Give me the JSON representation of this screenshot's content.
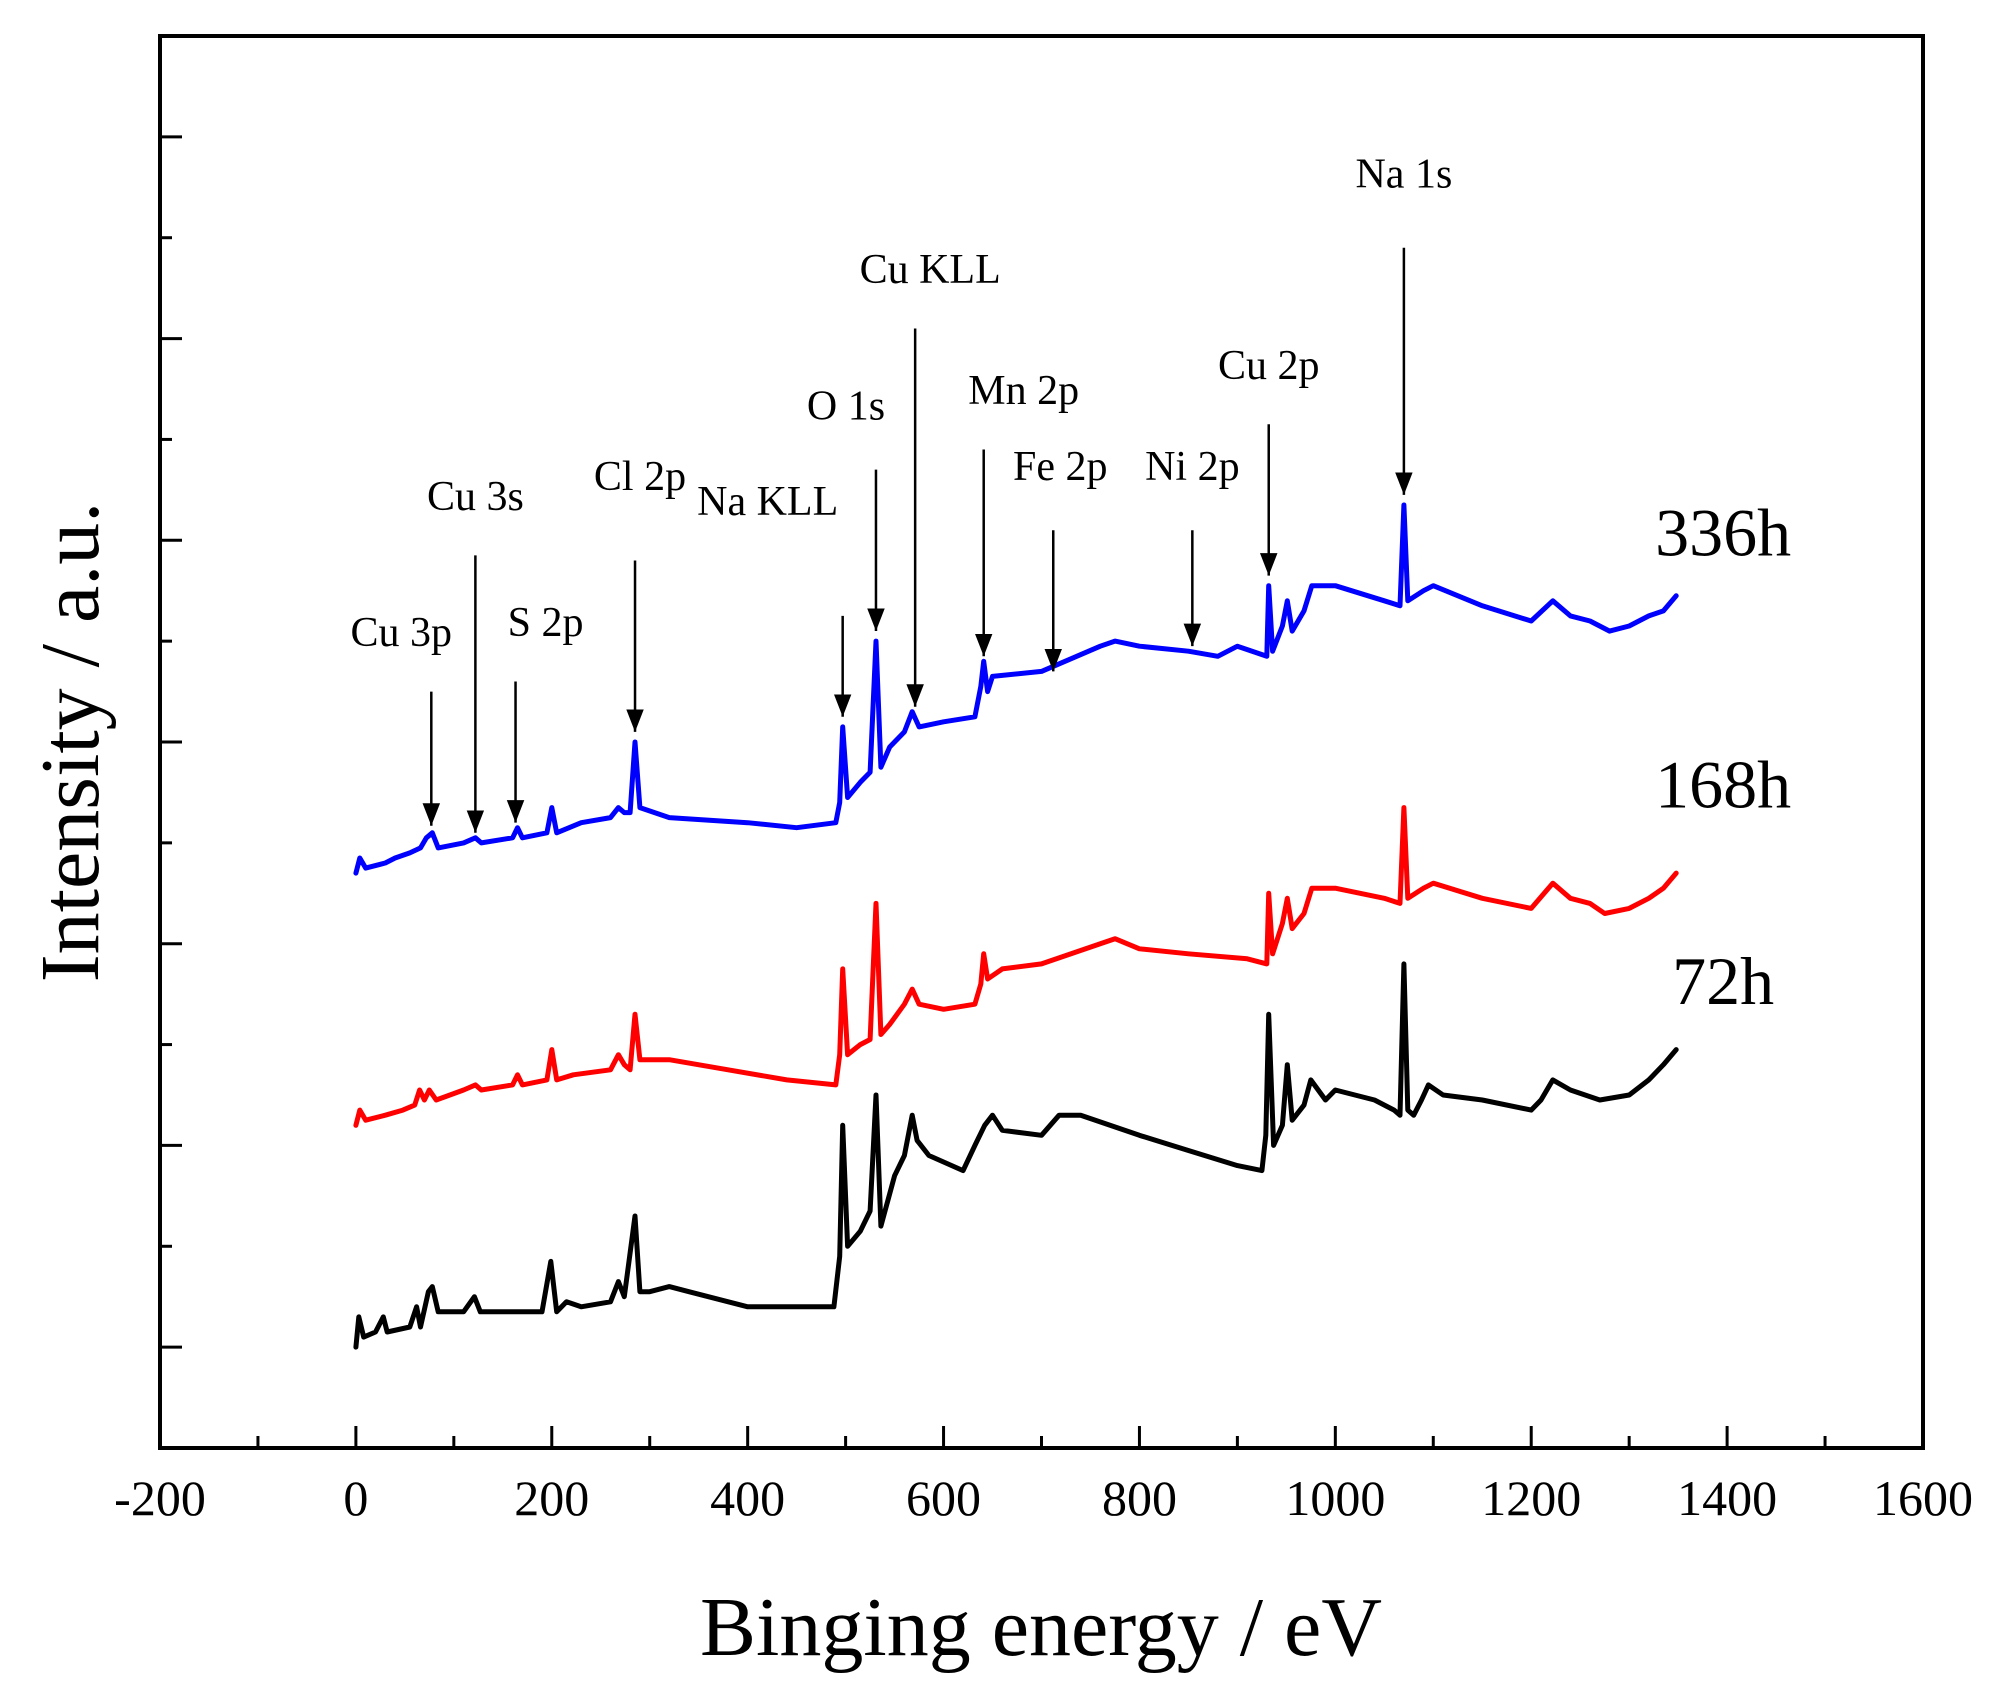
{
  "chart_data": {
    "type": "line",
    "title": "",
    "xlabel": "Binging energy / eV",
    "ylabel": "Intensity / a.u.",
    "xlim": [
      -200,
      1600
    ],
    "x_ticks": [
      -200,
      0,
      200,
      400,
      600,
      800,
      1000,
      1200,
      1400,
      1600
    ],
    "x_tick_labels": [
      "-200",
      "0",
      "200",
      "400",
      "600",
      "800",
      "1000",
      "1200",
      "1400",
      "1600"
    ],
    "ylim": [
      0,
      14
    ],
    "y_ticks": [
      1,
      2,
      3,
      4,
      5,
      6,
      7,
      8,
      9,
      10,
      11,
      12,
      13
    ],
    "y_tick_labels_shown": false,
    "grid": false,
    "legend": "none (series labelled at right end of each curve)",
    "series": [
      {
        "name": "72h",
        "color": "#000000",
        "points": [
          [
            0,
            1.0
          ],
          [
            3,
            1.3
          ],
          [
            8,
            1.1
          ],
          [
            20,
            1.15
          ],
          [
            28,
            1.3
          ],
          [
            32,
            1.15
          ],
          [
            55,
            1.2
          ],
          [
            62,
            1.4
          ],
          [
            66,
            1.2
          ],
          [
            74,
            1.55
          ],
          [
            78,
            1.6
          ],
          [
            84,
            1.35
          ],
          [
            110,
            1.35
          ],
          [
            121,
            1.5
          ],
          [
            127,
            1.35
          ],
          [
            190,
            1.35
          ],
          [
            199,
            1.85
          ],
          [
            205,
            1.35
          ],
          [
            215,
            1.45
          ],
          [
            230,
            1.4
          ],
          [
            260,
            1.45
          ],
          [
            268,
            1.65
          ],
          [
            274,
            1.5
          ],
          [
            285,
            2.3
          ],
          [
            290,
            1.55
          ],
          [
            300,
            1.55
          ],
          [
            320,
            1.6
          ],
          [
            340,
            1.55
          ],
          [
            400,
            1.4
          ],
          [
            470,
            1.4
          ],
          [
            488,
            1.4
          ],
          [
            494,
            1.9
          ],
          [
            497,
            3.2
          ],
          [
            502,
            2.0
          ],
          [
            515,
            2.15
          ],
          [
            525,
            2.35
          ],
          [
            531,
            3.5
          ],
          [
            536,
            2.2
          ],
          [
            550,
            2.7
          ],
          [
            560,
            2.9
          ],
          [
            568,
            3.3
          ],
          [
            573,
            3.05
          ],
          [
            585,
            2.9
          ],
          [
            620,
            2.75
          ],
          [
            632,
            3.0
          ],
          [
            642,
            3.2
          ],
          [
            650,
            3.3
          ],
          [
            660,
            3.15
          ],
          [
            700,
            3.1
          ],
          [
            718,
            3.3
          ],
          [
            740,
            3.3
          ],
          [
            800,
            3.1
          ],
          [
            850,
            2.95
          ],
          [
            900,
            2.8
          ],
          [
            925,
            2.75
          ],
          [
            929,
            3.1
          ],
          [
            932,
            4.3
          ],
          [
            937,
            3.0
          ],
          [
            946,
            3.2
          ],
          [
            951,
            3.8
          ],
          [
            956,
            3.25
          ],
          [
            968,
            3.4
          ],
          [
            975,
            3.65
          ],
          [
            990,
            3.45
          ],
          [
            1000,
            3.55
          ],
          [
            1040,
            3.45
          ],
          [
            1060,
            3.35
          ],
          [
            1066,
            3.3
          ],
          [
            1070,
            4.8
          ],
          [
            1074,
            3.35
          ],
          [
            1080,
            3.3
          ],
          [
            1088,
            3.45
          ],
          [
            1095,
            3.6
          ],
          [
            1110,
            3.5
          ],
          [
            1150,
            3.45
          ],
          [
            1200,
            3.35
          ],
          [
            1210,
            3.45
          ],
          [
            1222,
            3.65
          ],
          [
            1240,
            3.55
          ],
          [
            1270,
            3.45
          ],
          [
            1300,
            3.5
          ],
          [
            1320,
            3.65
          ],
          [
            1335,
            3.8
          ],
          [
            1348,
            3.95
          ]
        ]
      },
      {
        "name": "168h",
        "color": "#ff0000",
        "points": [
          [
            0,
            3.2
          ],
          [
            4,
            3.35
          ],
          [
            10,
            3.25
          ],
          [
            30,
            3.3
          ],
          [
            48,
            3.35
          ],
          [
            60,
            3.4
          ],
          [
            65,
            3.55
          ],
          [
            70,
            3.45
          ],
          [
            75,
            3.55
          ],
          [
            82,
            3.45
          ],
          [
            110,
            3.55
          ],
          [
            122,
            3.6
          ],
          [
            128,
            3.55
          ],
          [
            160,
            3.6
          ],
          [
            165,
            3.7
          ],
          [
            170,
            3.6
          ],
          [
            195,
            3.65
          ],
          [
            200,
            3.95
          ],
          [
            205,
            3.65
          ],
          [
            222,
            3.7
          ],
          [
            260,
            3.75
          ],
          [
            268,
            3.9
          ],
          [
            274,
            3.8
          ],
          [
            280,
            3.75
          ],
          [
            285,
            4.3
          ],
          [
            290,
            3.85
          ],
          [
            320,
            3.85
          ],
          [
            380,
            3.75
          ],
          [
            440,
            3.65
          ],
          [
            490,
            3.6
          ],
          [
            494,
            3.9
          ],
          [
            497,
            4.75
          ],
          [
            502,
            3.9
          ],
          [
            515,
            4.0
          ],
          [
            525,
            4.05
          ],
          [
            531,
            5.4
          ],
          [
            536,
            4.1
          ],
          [
            545,
            4.2
          ],
          [
            560,
            4.4
          ],
          [
            568,
            4.55
          ],
          [
            575,
            4.4
          ],
          [
            600,
            4.35
          ],
          [
            632,
            4.4
          ],
          [
            638,
            4.6
          ],
          [
            641,
            4.9
          ],
          [
            645,
            4.65
          ],
          [
            660,
            4.75
          ],
          [
            700,
            4.8
          ],
          [
            760,
            5.0
          ],
          [
            775,
            5.05
          ],
          [
            800,
            4.95
          ],
          [
            850,
            4.9
          ],
          [
            910,
            4.85
          ],
          [
            930,
            4.8
          ],
          [
            932,
            5.5
          ],
          [
            936,
            4.9
          ],
          [
            946,
            5.2
          ],
          [
            951,
            5.45
          ],
          [
            956,
            5.15
          ],
          [
            968,
            5.3
          ],
          [
            976,
            5.55
          ],
          [
            1000,
            5.55
          ],
          [
            1050,
            5.45
          ],
          [
            1066,
            5.4
          ],
          [
            1070,
            6.35
          ],
          [
            1074,
            5.45
          ],
          [
            1090,
            5.55
          ],
          [
            1100,
            5.6
          ],
          [
            1150,
            5.45
          ],
          [
            1200,
            5.35
          ],
          [
            1222,
            5.6
          ],
          [
            1240,
            5.45
          ],
          [
            1260,
            5.4
          ],
          [
            1275,
            5.3
          ],
          [
            1300,
            5.35
          ],
          [
            1320,
            5.45
          ],
          [
            1335,
            5.55
          ],
          [
            1348,
            5.7
          ]
        ]
      },
      {
        "name": "336h",
        "color": "#0000ff",
        "points": [
          [
            0,
            5.7
          ],
          [
            4,
            5.85
          ],
          [
            10,
            5.75
          ],
          [
            30,
            5.8
          ],
          [
            40,
            5.85
          ],
          [
            55,
            5.9
          ],
          [
            66,
            5.95
          ],
          [
            72,
            6.05
          ],
          [
            78,
            6.1
          ],
          [
            84,
            5.95
          ],
          [
            110,
            6.0
          ],
          [
            122,
            6.05
          ],
          [
            128,
            6.0
          ],
          [
            160,
            6.05
          ],
          [
            165,
            6.15
          ],
          [
            170,
            6.05
          ],
          [
            195,
            6.1
          ],
          [
            200,
            6.35
          ],
          [
            205,
            6.1
          ],
          [
            230,
            6.2
          ],
          [
            260,
            6.25
          ],
          [
            268,
            6.35
          ],
          [
            274,
            6.3
          ],
          [
            280,
            6.3
          ],
          [
            285,
            7.0
          ],
          [
            290,
            6.35
          ],
          [
            320,
            6.25
          ],
          [
            400,
            6.2
          ],
          [
            450,
            6.15
          ],
          [
            490,
            6.2
          ],
          [
            494,
            6.4
          ],
          [
            497,
            7.15
          ],
          [
            502,
            6.45
          ],
          [
            515,
            6.6
          ],
          [
            525,
            6.7
          ],
          [
            531,
            8.0
          ],
          [
            536,
            6.75
          ],
          [
            545,
            6.95
          ],
          [
            560,
            7.1
          ],
          [
            568,
            7.3
          ],
          [
            575,
            7.15
          ],
          [
            600,
            7.2
          ],
          [
            632,
            7.25
          ],
          [
            638,
            7.55
          ],
          [
            641,
            7.8
          ],
          [
            645,
            7.5
          ],
          [
            650,
            7.65
          ],
          [
            700,
            7.7
          ],
          [
            760,
            7.95
          ],
          [
            775,
            8.0
          ],
          [
            800,
            7.95
          ],
          [
            850,
            7.9
          ],
          [
            880,
            7.85
          ],
          [
            900,
            7.95
          ],
          [
            930,
            7.85
          ],
          [
            932,
            8.55
          ],
          [
            936,
            7.9
          ],
          [
            946,
            8.15
          ],
          [
            951,
            8.4
          ],
          [
            956,
            8.1
          ],
          [
            968,
            8.3
          ],
          [
            976,
            8.55
          ],
          [
            1000,
            8.55
          ],
          [
            1050,
            8.4
          ],
          [
            1066,
            8.35
          ],
          [
            1070,
            9.35
          ],
          [
            1074,
            8.4
          ],
          [
            1090,
            8.5
          ],
          [
            1100,
            8.55
          ],
          [
            1150,
            8.35
          ],
          [
            1200,
            8.2
          ],
          [
            1222,
            8.4
          ],
          [
            1240,
            8.25
          ],
          [
            1260,
            8.2
          ],
          [
            1280,
            8.1
          ],
          [
            1300,
            8.15
          ],
          [
            1320,
            8.25
          ],
          [
            1335,
            8.3
          ],
          [
            1348,
            8.45
          ]
        ]
      }
    ],
    "series_labels": [
      {
        "text": "72h",
        "x": 1350,
        "y": 4.4
      },
      {
        "text": "168h",
        "x": 1350,
        "y": 6.35
      },
      {
        "text": "336h",
        "x": 1350,
        "y": 8.85
      }
    ],
    "annotations": [
      {
        "text": "Cu 3p",
        "x": 77,
        "y_tip": 6.17,
        "y_tail": 7.5,
        "y_text": 7.95,
        "text_dx": -30
      },
      {
        "text": "Cu 3s",
        "x": 122,
        "y_tip": 6.1,
        "y_tail": 8.85,
        "y_text": 9.3,
        "text_dx": 0
      },
      {
        "text": "S 2p",
        "x": 163,
        "y_tip": 6.2,
        "y_tail": 7.6,
        "y_text": 8.05,
        "text_dx": 30
      },
      {
        "text": "Cl 2p",
        "x": 285,
        "y_tip": 7.1,
        "y_tail": 8.8,
        "y_text": 9.5,
        "text_dx": 5
      },
      {
        "text": "Na KLL",
        "x": 497,
        "y_tip": 7.25,
        "y_tail": 8.25,
        "y_text": 9.25,
        "text_dx": -75
      },
      {
        "text": "O 1s",
        "x": 531,
        "y_tip": 8.1,
        "y_tail": 9.7,
        "y_text": 10.2,
        "text_dx": -30
      },
      {
        "text": "Cu KLL",
        "x": 571,
        "y_tip": 7.35,
        "y_tail": 11.1,
        "y_text": 11.55,
        "text_dx": 15
      },
      {
        "text": "Mn 2p",
        "x": 641,
        "y_tip": 7.85,
        "y_tail": 9.9,
        "y_text": 10.35,
        "text_dx": 40
      },
      {
        "text": "Fe 2p",
        "x": 712,
        "y_tip": 7.7,
        "y_tail": 9.1,
        "y_text": 9.6,
        "text_dx": 7
      },
      {
        "text": "Ni 2p",
        "x": 854,
        "y_tip": 7.95,
        "y_tail": 9.1,
        "y_text": 9.6,
        "text_dx": 0
      },
      {
        "text": "Cu 2p",
        "x": 932,
        "y_tip": 8.65,
        "y_tail": 10.15,
        "y_text": 10.6,
        "text_dx": 0
      },
      {
        "text": "Na 1s",
        "x": 1070,
        "y_tip": 9.45,
        "y_tail": 11.9,
        "y_text": 12.5,
        "text_dx": 0
      }
    ]
  }
}
